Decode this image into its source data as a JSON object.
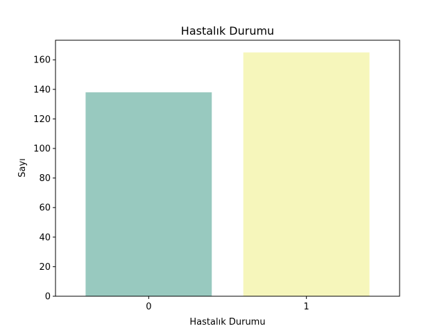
{
  "chart_data": {
    "type": "bar",
    "title": "Hastalık Durumu",
    "xlabel": "Hastalık Durumu",
    "ylabel": "Sayı",
    "categories": [
      "0",
      "1"
    ],
    "values": [
      138,
      165
    ],
    "bar_colors": [
      "#98c9bf",
      "#f6f6bb"
    ],
    "ylim": [
      0,
      173.25
    ],
    "yticks": [
      0,
      20,
      40,
      60,
      80,
      100,
      120,
      140,
      160
    ],
    "grid": false,
    "legend": "none"
  }
}
